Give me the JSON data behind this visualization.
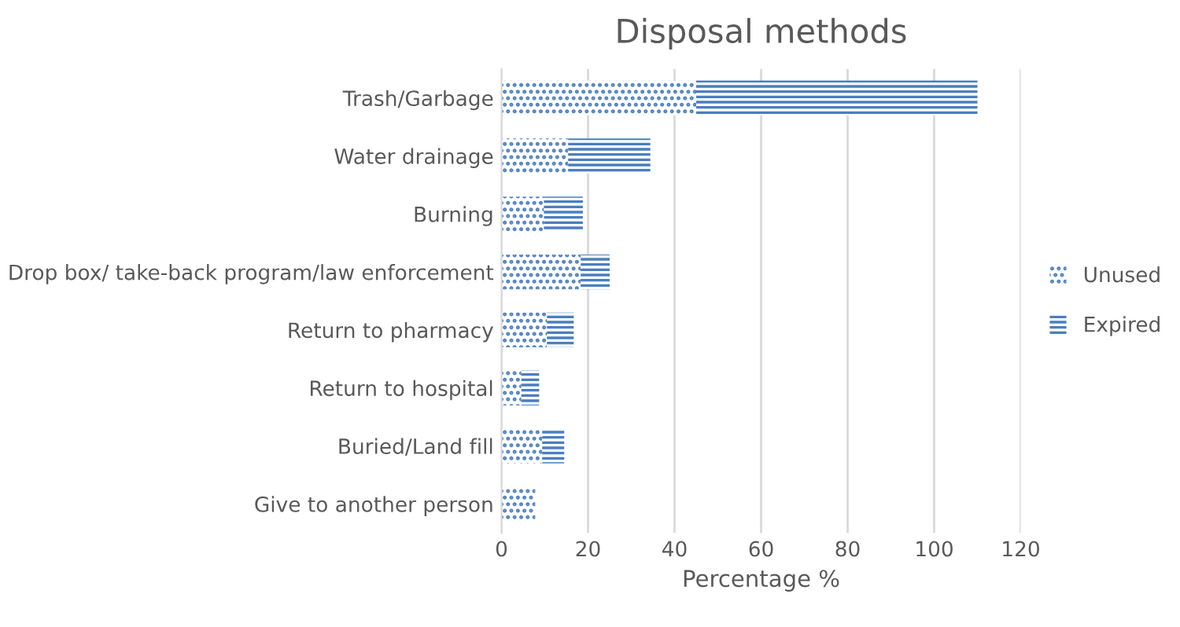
{
  "chart_data": {
    "type": "bar",
    "orientation": "horizontal",
    "stacked": true,
    "title": "Disposal methods",
    "xlabel": "Percentage %",
    "categories": [
      "Trash/Garbage",
      "Water drainage",
      "Burning",
      "Drop box/ take-back program/law enforcement",
      "Return to pharmacy",
      "Return to hospital",
      "Buried/Land fill",
      "Give to another person"
    ],
    "series": [
      {
        "name": "Unused",
        "color": "#4a7ebf",
        "values": [
          45,
          15.4,
          9.8,
          18.3,
          10.5,
          4.6,
          9.4,
          7.8
        ]
      },
      {
        "name": "Expired",
        "color": "#4a7ebf",
        "values": [
          65,
          19,
          9,
          6.7,
          6.2,
          4.1,
          5.1,
          0
        ]
      }
    ],
    "xlim": [
      0,
      120
    ],
    "xticks": [
      0,
      20,
      40,
      60,
      80,
      100,
      120
    ],
    "grid": "x",
    "legend": "right"
  }
}
